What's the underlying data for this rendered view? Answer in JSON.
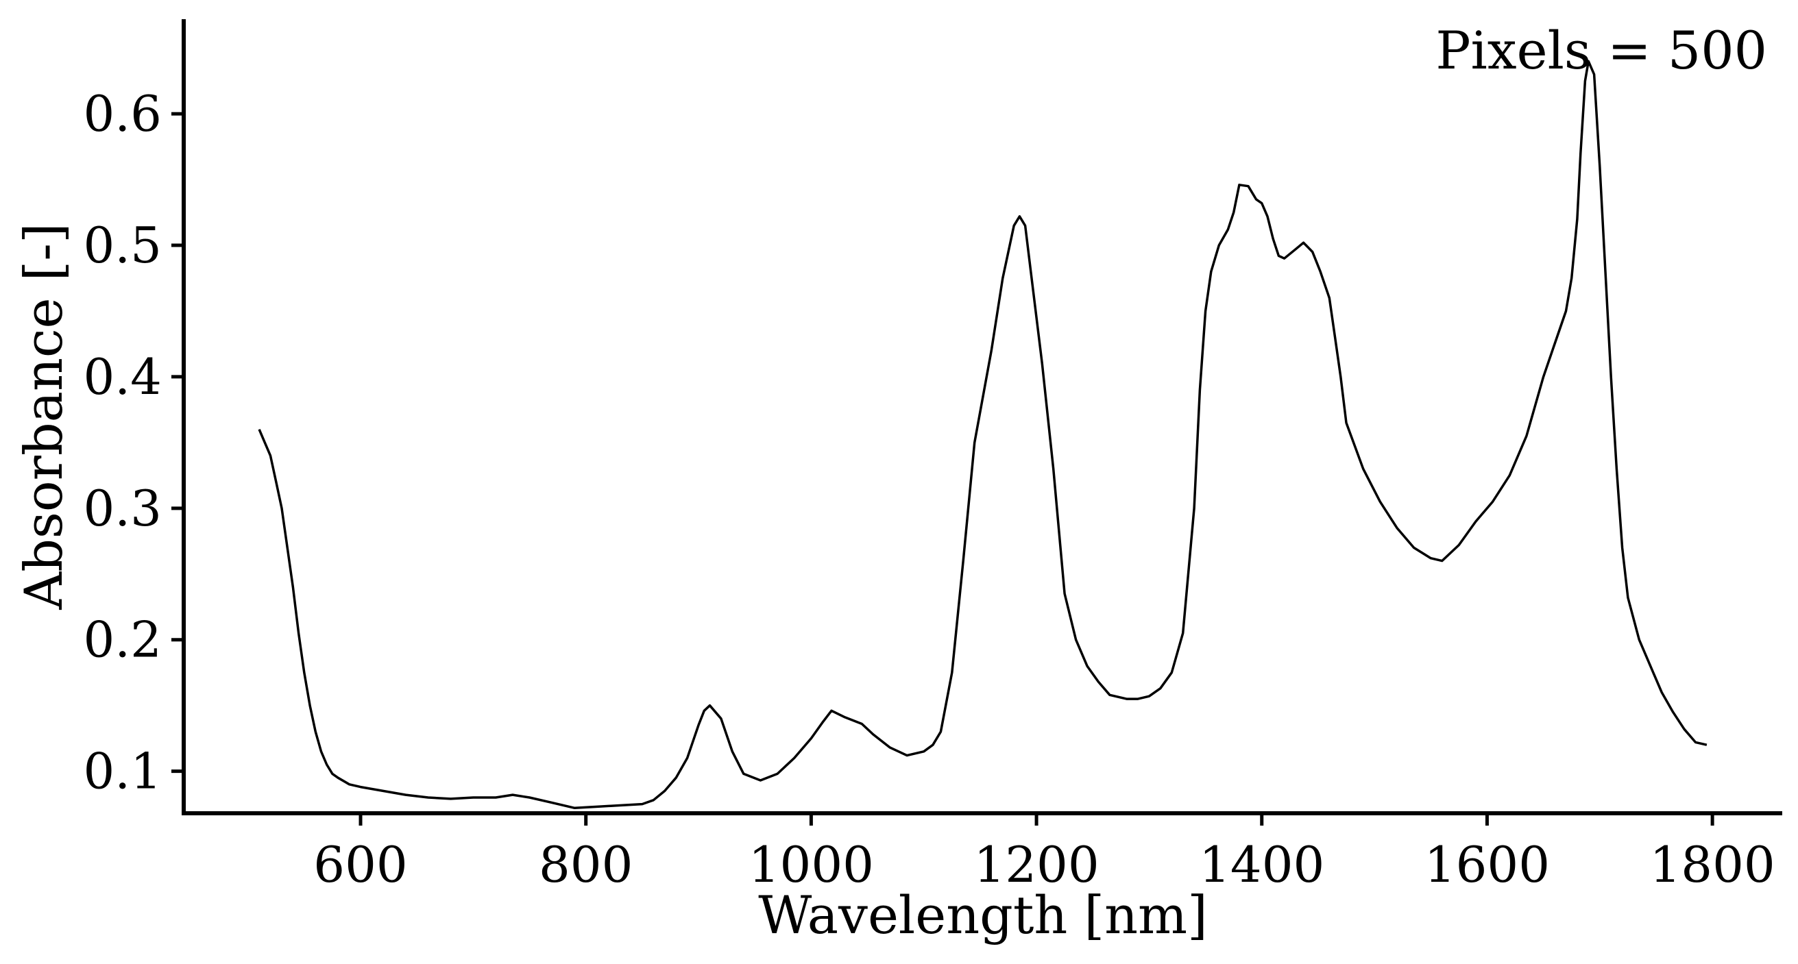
{
  "chart_data": {
    "type": "line",
    "title": "",
    "xlabel": "Wavelength [nm]",
    "ylabel": "Absorbance [-]",
    "annotation": "Pixels = 500",
    "legend": "none",
    "grid": false,
    "xlim": [
      443,
      1862
    ],
    "ylim": [
      0.068,
      0.672
    ],
    "xticks": [
      600,
      800,
      1000,
      1200,
      1400,
      1600,
      1800
    ],
    "xtick_labels": [
      "600",
      "800",
      "1000",
      "1200",
      "1400",
      "1600",
      "1800"
    ],
    "yticks": [
      0.1,
      0.2,
      0.3,
      0.4,
      0.5,
      0.6
    ],
    "ytick_labels": [
      "0.1",
      "0.2",
      "0.3",
      "0.4",
      "0.5",
      "0.6"
    ],
    "line_color": "#000000",
    "series": [
      {
        "x": [
          510,
          515,
          520,
          525,
          530,
          535,
          540,
          545,
          550,
          555,
          560,
          565,
          570,
          575,
          580,
          590,
          600,
          620,
          640,
          660,
          680,
          700,
          720,
          735,
          750,
          770,
          790,
          810,
          830,
          850,
          860,
          870,
          880,
          890,
          900,
          905,
          910,
          920,
          930,
          940,
          955,
          970,
          985,
          1000,
          1010,
          1018,
          1030,
          1045,
          1055,
          1070,
          1085,
          1100,
          1108,
          1115,
          1125,
          1135,
          1145,
          1160,
          1170,
          1180,
          1185,
          1190,
          1195,
          1205,
          1215,
          1225,
          1235,
          1245,
          1255,
          1265,
          1280,
          1290,
          1300,
          1310,
          1320,
          1330,
          1340,
          1345,
          1350,
          1355,
          1362,
          1370,
          1375,
          1380,
          1388,
          1395,
          1400,
          1405,
          1410,
          1415,
          1420,
          1430,
          1437,
          1445,
          1452,
          1460,
          1465,
          1470,
          1475,
          1490,
          1505,
          1520,
          1535,
          1550,
          1560,
          1575,
          1590,
          1605,
          1620,
          1635,
          1650,
          1660,
          1670,
          1675,
          1680,
          1683,
          1687,
          1690,
          1695,
          1700,
          1705,
          1710,
          1715,
          1720,
          1725,
          1735,
          1745,
          1755,
          1765,
          1775,
          1785,
          1795
        ],
        "y": [
          0.36,
          0.35,
          0.34,
          0.32,
          0.3,
          0.27,
          0.24,
          0.205,
          0.175,
          0.15,
          0.13,
          0.115,
          0.105,
          0.098,
          0.095,
          0.09,
          0.088,
          0.085,
          0.082,
          0.08,
          0.079,
          0.08,
          0.08,
          0.082,
          0.08,
          0.076,
          0.072,
          0.073,
          0.074,
          0.075,
          0.078,
          0.085,
          0.095,
          0.11,
          0.135,
          0.146,
          0.15,
          0.14,
          0.115,
          0.098,
          0.093,
          0.098,
          0.11,
          0.125,
          0.137,
          0.146,
          0.141,
          0.136,
          0.128,
          0.118,
          0.112,
          0.115,
          0.12,
          0.13,
          0.175,
          0.26,
          0.35,
          0.42,
          0.475,
          0.515,
          0.522,
          0.515,
          0.48,
          0.41,
          0.33,
          0.235,
          0.2,
          0.18,
          0.168,
          0.158,
          0.155,
          0.155,
          0.157,
          0.163,
          0.175,
          0.205,
          0.3,
          0.39,
          0.45,
          0.48,
          0.5,
          0.512,
          0.525,
          0.546,
          0.545,
          0.535,
          0.532,
          0.522,
          0.505,
          0.492,
          0.49,
          0.497,
          0.502,
          0.495,
          0.48,
          0.46,
          0.43,
          0.4,
          0.365,
          0.33,
          0.305,
          0.285,
          0.27,
          0.262,
          0.26,
          0.272,
          0.29,
          0.305,
          0.325,
          0.355,
          0.4,
          0.425,
          0.45,
          0.475,
          0.52,
          0.57,
          0.625,
          0.64,
          0.63,
          0.56,
          0.48,
          0.4,
          0.33,
          0.27,
          0.232,
          0.2,
          0.18,
          0.16,
          0.145,
          0.132,
          0.122,
          0.12
        ]
      }
    ]
  }
}
